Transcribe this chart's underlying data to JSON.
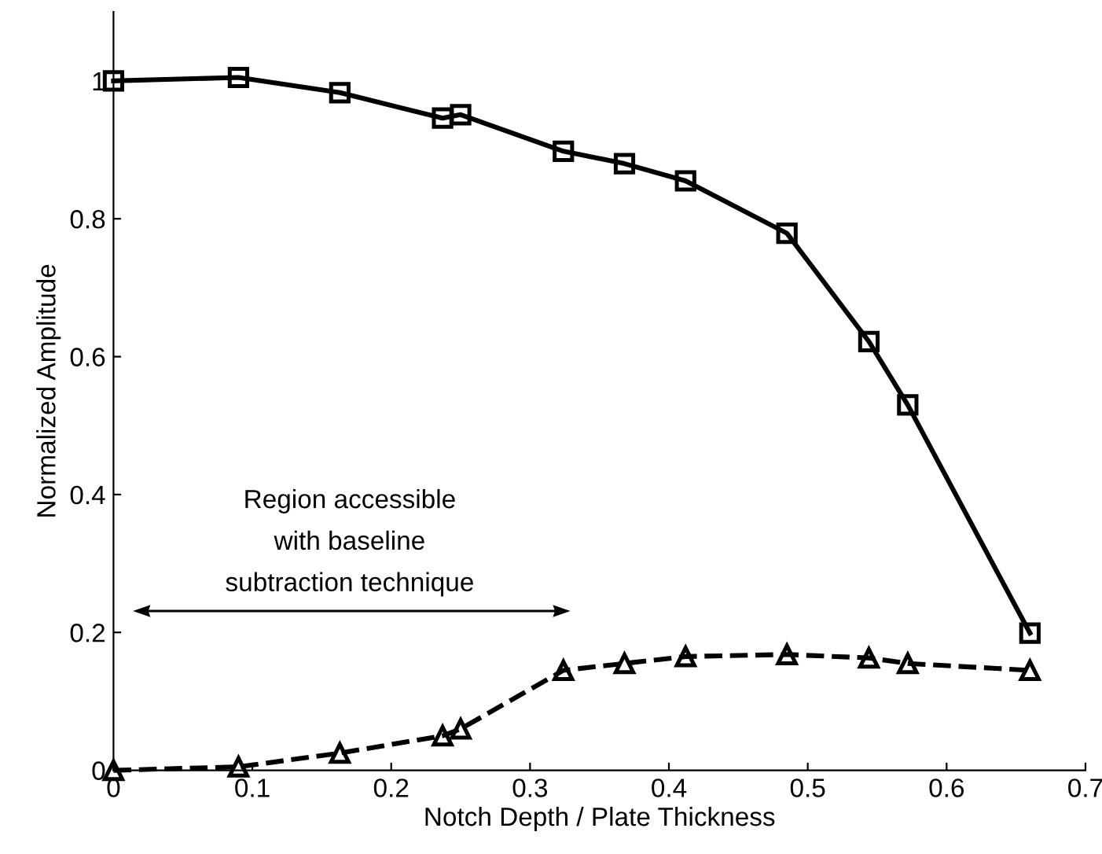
{
  "chart_data": {
    "type": "line",
    "xlabel": "Notch Depth / Plate Thickness",
    "ylabel": "Normalized Amplitude",
    "x": [
      0,
      0.09,
      0.163,
      0.237,
      0.25,
      0.324,
      0.368,
      0.412,
      0.485,
      0.544,
      0.572,
      0.66
    ],
    "series": [
      {
        "color": "#000000",
        "marker": "square",
        "line_style": "solid",
        "values": [
          1.0,
          1.005,
          0.983,
          0.946,
          0.951,
          0.898,
          0.88,
          0.855,
          0.779,
          0.622,
          0.53,
          0.199
        ]
      },
      {
        "color": "#000000",
        "marker": "triangle",
        "line_style": "dashed",
        "values": [
          0,
          0.005,
          0.025,
          0.05,
          0.06,
          0.145,
          0.155,
          0.165,
          0.168,
          0.163,
          0.155,
          0.145
        ]
      }
    ],
    "xlim": [
      0,
      0.7
    ],
    "ylim": [
      0,
      1.1
    ],
    "xticks": [
      0,
      0.1,
      0.2,
      0.3,
      0.4,
      0.5,
      0.6,
      0.7
    ],
    "yticks": [
      0,
      0.2,
      0.4,
      0.6,
      0.8,
      1
    ],
    "annotations": [
      "Region accessible\nwith baseline\nsubtraction technique"
    ],
    "grid": false,
    "legend": false
  }
}
